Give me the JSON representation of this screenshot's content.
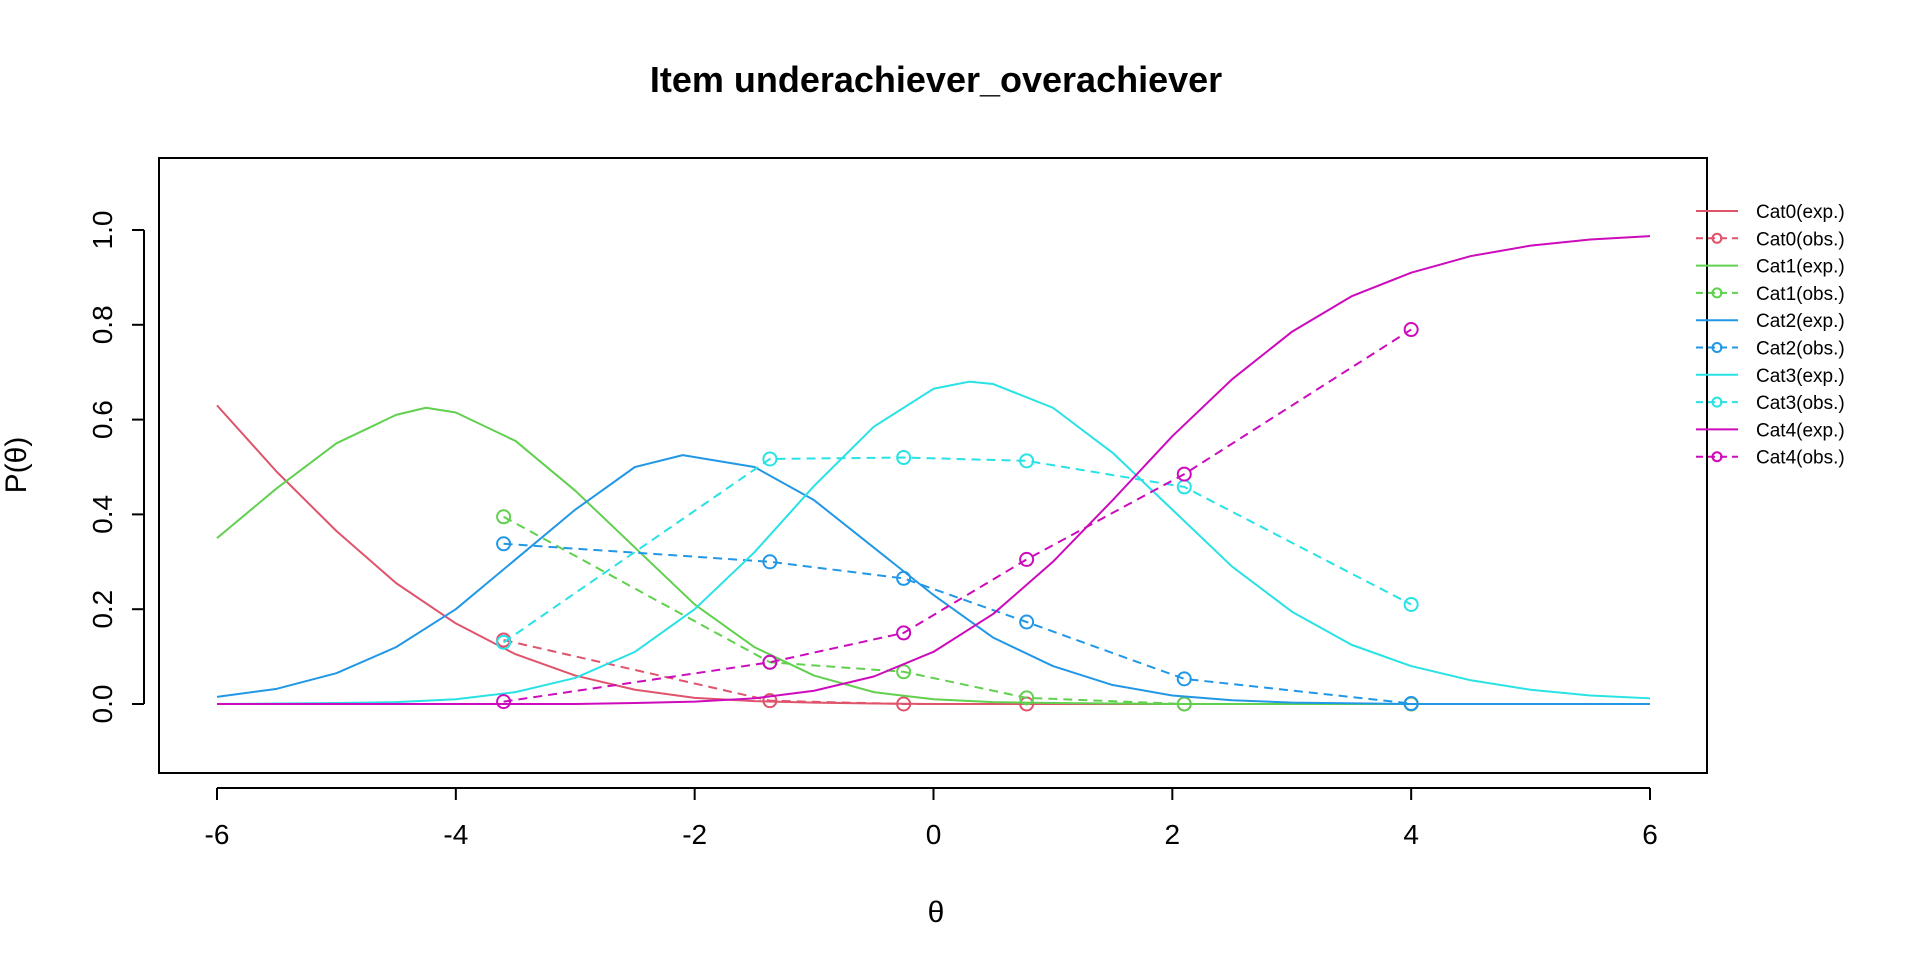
{
  "chart_data": {
    "type": "line",
    "title": "Item underachiever_overachiever",
    "xlabel": "θ",
    "ylabel": "P(θ)",
    "xlim": [
      -6,
      6
    ],
    "ylim": [
      -0.12,
      1.14
    ],
    "x_ticks": [
      -6,
      -4,
      -2,
      0,
      2,
      4,
      6
    ],
    "x_tick_labels": [
      "-6",
      "-4",
      "-2",
      "0",
      "2",
      "4",
      "6"
    ],
    "y_ticks": [
      0.0,
      0.2,
      0.4,
      0.6,
      0.8,
      1.0
    ],
    "y_tick_labels": [
      "0.0",
      "0.2",
      "0.4",
      "0.6",
      "0.8",
      "1.0"
    ],
    "grid": false,
    "legend_position": "right",
    "legend": [
      "Cat0(exp.)",
      "Cat0(obs.)",
      "Cat1(exp.)",
      "Cat1(obs.)",
      "Cat2(exp.)",
      "Cat2(obs.)",
      "Cat3(exp.)",
      "Cat3(obs.)",
      "Cat4(exp.)",
      "Cat4(obs.)"
    ],
    "series": [
      {
        "name": "Cat0(exp.)",
        "color": "#DF536B",
        "style": "solid",
        "x": [
          -6,
          -5.5,
          -5,
          -4.5,
          -4,
          -3.5,
          -3,
          -2.5,
          -2,
          -1.5,
          -1,
          -0.5,
          0,
          1,
          2,
          3,
          4,
          5,
          6
        ],
        "y": [
          0.63,
          0.49,
          0.365,
          0.255,
          0.17,
          0.105,
          0.06,
          0.03,
          0.013,
          0.006,
          0.003,
          0.001,
          0.0,
          0.0,
          0.0,
          0.0,
          0.0,
          0.0,
          0.0
        ]
      },
      {
        "name": "Cat0(obs.)",
        "color": "#DF536B",
        "style": "dashed",
        "x": [
          -3.6,
          -1.37,
          -0.25,
          0.78,
          2.1,
          4.0
        ],
        "y": [
          0.135,
          0.007,
          0.0,
          0.0,
          0.0,
          0.0
        ]
      },
      {
        "name": "Cat1(exp.)",
        "color": "#61D04F",
        "style": "solid",
        "x": [
          -6,
          -5.5,
          -5,
          -4.5,
          -4.25,
          -4,
          -3.5,
          -3,
          -2.5,
          -2,
          -1.5,
          -1,
          -0.5,
          0,
          0.5,
          1,
          2,
          3,
          4,
          5,
          6
        ],
        "y": [
          0.35,
          0.455,
          0.55,
          0.61,
          0.625,
          0.615,
          0.555,
          0.45,
          0.33,
          0.21,
          0.12,
          0.06,
          0.025,
          0.01,
          0.004,
          0.002,
          0.0,
          0.0,
          0.0,
          0.0,
          0.0
        ]
      },
      {
        "name": "Cat1(obs.)",
        "color": "#61D04F",
        "style": "dashed",
        "x": [
          -3.6,
          -1.37,
          -0.25,
          0.78,
          2.1,
          4.0
        ],
        "y": [
          0.395,
          0.088,
          0.068,
          0.013,
          0.0,
          0.0
        ]
      },
      {
        "name": "Cat2(exp.)",
        "color": "#2297E6",
        "style": "solid",
        "x": [
          -6,
          -5.5,
          -5,
          -4.5,
          -4,
          -3.5,
          -3,
          -2.5,
          -2.1,
          -1.5,
          -1,
          -0.5,
          0,
          0.5,
          1,
          1.5,
          2,
          2.5,
          3,
          4,
          5,
          6
        ],
        "y": [
          0.015,
          0.032,
          0.065,
          0.12,
          0.2,
          0.305,
          0.41,
          0.5,
          0.525,
          0.5,
          0.43,
          0.33,
          0.23,
          0.14,
          0.08,
          0.04,
          0.018,
          0.008,
          0.003,
          0.0,
          0.0,
          0.0
        ]
      },
      {
        "name": "Cat2(obs.)",
        "color": "#2297E6",
        "style": "dashed",
        "x": [
          -3.6,
          -1.37,
          -0.25,
          0.78,
          2.1,
          4.0
        ],
        "y": [
          0.338,
          0.3,
          0.265,
          0.173,
          0.053,
          0.001
        ]
      },
      {
        "name": "Cat3(exp.)",
        "color": "#28E2E5",
        "style": "solid",
        "x": [
          -6,
          -5,
          -4.5,
          -4,
          -3.5,
          -3,
          -2.5,
          -2,
          -1.5,
          -1,
          -0.5,
          0,
          0.3,
          0.5,
          1,
          1.5,
          2,
          2.5,
          3,
          3.5,
          4,
          4.5,
          5,
          5.5,
          6
        ],
        "y": [
          0.0,
          0.002,
          0.004,
          0.01,
          0.025,
          0.055,
          0.11,
          0.2,
          0.32,
          0.46,
          0.585,
          0.665,
          0.68,
          0.675,
          0.625,
          0.53,
          0.41,
          0.29,
          0.195,
          0.125,
          0.08,
          0.05,
          0.03,
          0.018,
          0.012
        ]
      },
      {
        "name": "Cat3(obs.)",
        "color": "#28E2E5",
        "style": "dashed",
        "x": [
          -3.6,
          -1.37,
          -0.25,
          0.78,
          2.1,
          4.0
        ],
        "y": [
          0.13,
          0.517,
          0.52,
          0.513,
          0.458,
          0.21
        ]
      },
      {
        "name": "Cat4(exp.)",
        "color": "#CD0BBC",
        "style": "solid",
        "x": [
          -6,
          -4,
          -3,
          -2.5,
          -2,
          -1.5,
          -1,
          -0.5,
          0,
          0.5,
          1,
          1.5,
          2,
          2.5,
          3,
          3.5,
          4,
          4.5,
          5,
          5.5,
          6
        ],
        "y": [
          0.0,
          0.0,
          0.0,
          0.002,
          0.005,
          0.012,
          0.028,
          0.058,
          0.11,
          0.19,
          0.3,
          0.43,
          0.565,
          0.685,
          0.785,
          0.86,
          0.91,
          0.945,
          0.967,
          0.98,
          0.987
        ]
      },
      {
        "name": "Cat4(obs.)",
        "color": "#CD0BBC",
        "style": "dashed",
        "x": [
          -3.6,
          -1.37,
          -0.25,
          0.78,
          2.1,
          4.0
        ],
        "y": [
          0.005,
          0.088,
          0.15,
          0.305,
          0.485,
          0.79
        ]
      }
    ]
  }
}
